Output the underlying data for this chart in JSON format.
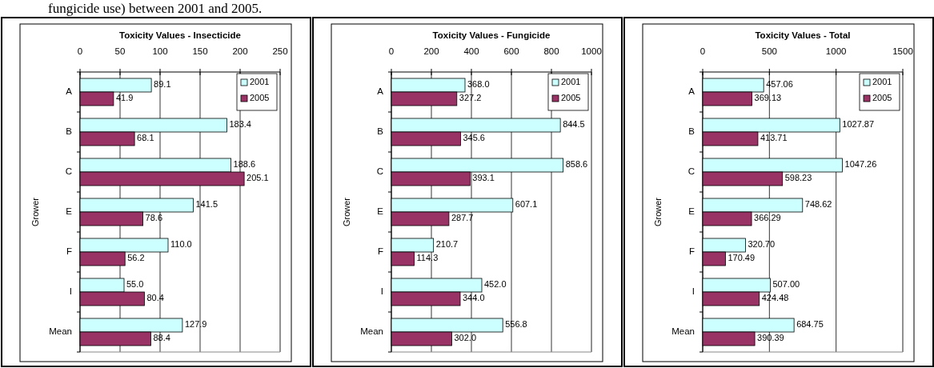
{
  "chart_data": [
    {
      "type": "bar",
      "orientation": "horizontal",
      "title": "Toxicity Values - Insecticide",
      "ylabel": "Grower",
      "categories": [
        "A",
        "B",
        "C",
        "E",
        "F",
        "I",
        "Mean"
      ],
      "xlim": [
        0,
        250
      ],
      "xticks": [
        0,
        50,
        100,
        150,
        200,
        250
      ],
      "grid": "x",
      "legend": "top right",
      "annotations": [
        "fungicide use) between 2001 and 2005."
      ],
      "series": [
        {
          "name": "2001",
          "color": "#ccffff",
          "values": [
            89.1,
            183.4,
            188.6,
            141.5,
            110.0,
            55.0,
            127.9
          ],
          "value_labels": [
            "89.1",
            "183.4",
            "188.6",
            "141.5",
            "110.0",
            "55.0",
            "127.9"
          ]
        },
        {
          "name": "2005",
          "color": "#993366",
          "values": [
            41.9,
            68.1,
            205.1,
            78.6,
            56.2,
            80.4,
            88.4
          ],
          "value_labels": [
            "41.9",
            "68.1",
            "205.1",
            "78.6",
            "56.2",
            "80.4",
            "88.4"
          ]
        }
      ]
    },
    {
      "type": "bar",
      "orientation": "horizontal",
      "title": "Toxicity Values - Fungicide",
      "ylabel": "Grower",
      "categories": [
        "A",
        "B",
        "C",
        "E",
        "F",
        "I",
        "Mean"
      ],
      "xlim": [
        0,
        1000
      ],
      "xticks": [
        0,
        200,
        400,
        600,
        800,
        1000
      ],
      "grid": "x",
      "legend": "top right",
      "series": [
        {
          "name": "2001",
          "color": "#ccffff",
          "values": [
            368.0,
            844.5,
            858.6,
            607.1,
            210.7,
            452.0,
            556.8
          ],
          "value_labels": [
            "368.0",
            "844.5",
            "858.6",
            "607.1",
            "210.7",
            "452.0",
            "556.8"
          ]
        },
        {
          "name": "2005",
          "color": "#993366",
          "values": [
            327.2,
            345.6,
            393.1,
            287.7,
            114.3,
            344.0,
            302.0
          ],
          "value_labels": [
            "327.2",
            "345.6",
            "393.1",
            "287.7",
            "114.3",
            "344.0",
            "302.0"
          ]
        }
      ]
    },
    {
      "type": "bar",
      "orientation": "horizontal",
      "title": "Toxicity Values - Total",
      "ylabel": "Grower",
      "categories": [
        "A",
        "B",
        "C",
        "E",
        "F",
        "I",
        "Mean"
      ],
      "xlim": [
        0,
        1500
      ],
      "xticks": [
        0,
        500,
        1000,
        1500
      ],
      "grid": "x",
      "legend": "top right",
      "series": [
        {
          "name": "2001",
          "color": "#ccffff",
          "values": [
            457.06,
            1027.87,
            1047.26,
            748.62,
            320.7,
            507.0,
            684.75
          ],
          "value_labels": [
            "457.06",
            "1027.87",
            "1047.26",
            "748.62",
            "320.70",
            "507.00",
            "684.75"
          ]
        },
        {
          "name": "2005",
          "color": "#993366",
          "values": [
            369.13,
            413.71,
            598.23,
            366.29,
            170.49,
            424.48,
            390.39
          ],
          "value_labels": [
            "369.13",
            "413.71",
            "598.23",
            "366.29",
            "170.49",
            "424.48",
            "390.39"
          ]
        }
      ]
    }
  ]
}
